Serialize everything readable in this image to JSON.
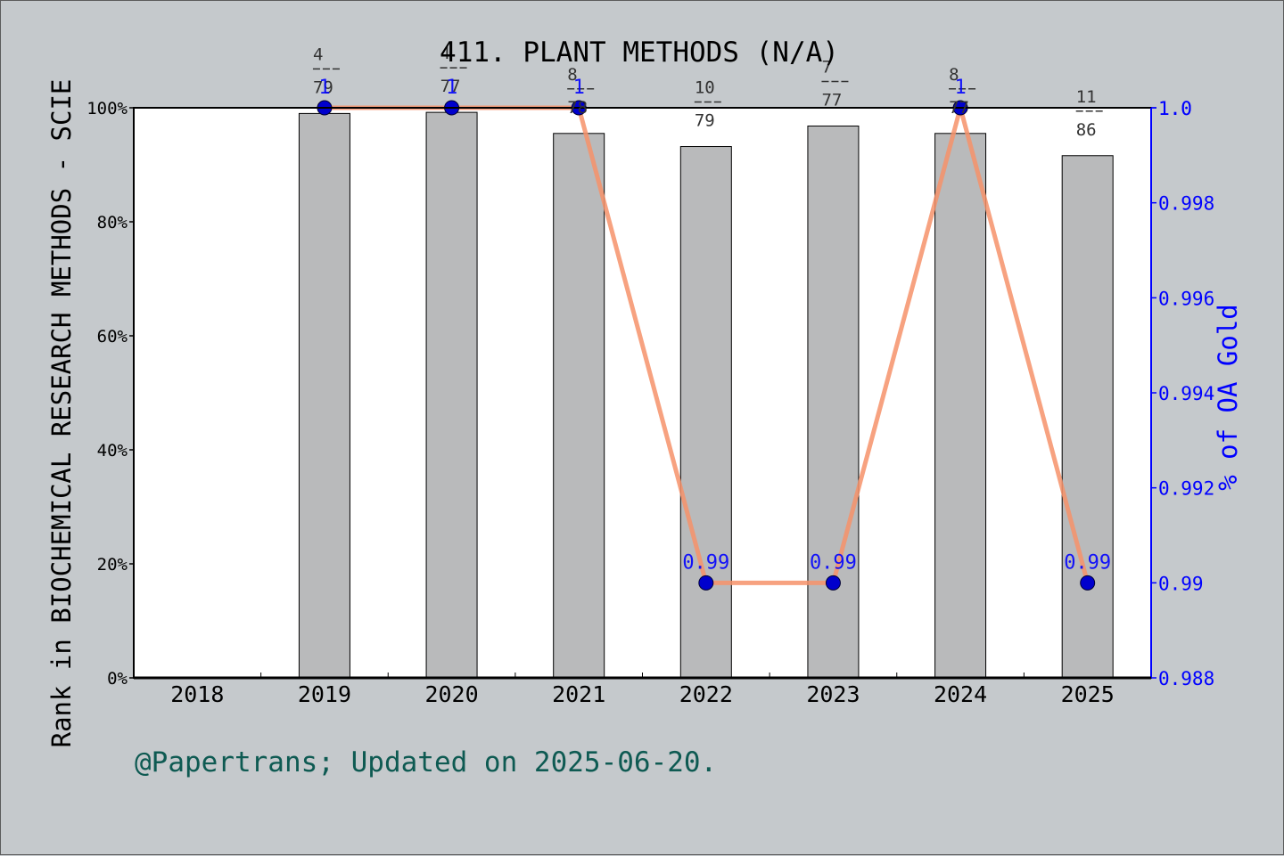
{
  "chart_data": {
    "type": "bar",
    "title": "411. PLANT METHODS (N/A)",
    "categories": [
      "2018",
      "2019",
      "2020",
      "2021",
      "2022",
      "2023",
      "2024",
      "2025"
    ],
    "ylabel": "Rank in BIOCHEMICAL RESEARCH METHODS - SCIE",
    "y2label": "% of OA Gold",
    "ylim": [
      0,
      100
    ],
    "y2lim": [
      0.988,
      1.0
    ],
    "yticks": [
      "0%",
      "20%",
      "40%",
      "60%",
      "80%",
      "100%"
    ],
    "y2ticks": [
      "0.988",
      "0.99",
      "0.992",
      "0.994",
      "0.996",
      "0.998",
      "1.0",
      "1.0"
    ],
    "bars": {
      "name": "Rank percentile",
      "values": [
        null,
        99.0,
        99.2,
        95.5,
        93.2,
        96.8,
        95.5,
        91.6
      ],
      "labels": [
        null,
        {
          "rank": "4",
          "total": "79"
        },
        {
          "rank": "4",
          "total": "77"
        },
        {
          "rank": "8",
          "total": "78"
        },
        {
          "rank": "10",
          "total": "79"
        },
        {
          "rank": "7",
          "total": "77"
        },
        {
          "rank": "8",
          "total": "77"
        },
        {
          "rank": "11",
          "total": "86"
        }
      ]
    },
    "line": {
      "name": "% of OA Gold",
      "values": [
        null,
        1.0,
        1.0,
        1.0,
        0.99,
        0.99,
        1.0,
        0.99
      ],
      "labels": [
        null,
        "1",
        "1",
        "1",
        "0.99",
        "0.99",
        "1",
        "0.99"
      ]
    },
    "grid": false,
    "legend": "none"
  },
  "footer": "@Papertrans; Updated on 2025-06-20.",
  "colors": {
    "background": "#c5c9cc",
    "plot_background": "#ffffff",
    "bar_fill": "#b9babb",
    "line": "#f6926a",
    "marker": "#0000cd",
    "right_axis": "#0000ff",
    "footer_text": "#0e5a52"
  }
}
